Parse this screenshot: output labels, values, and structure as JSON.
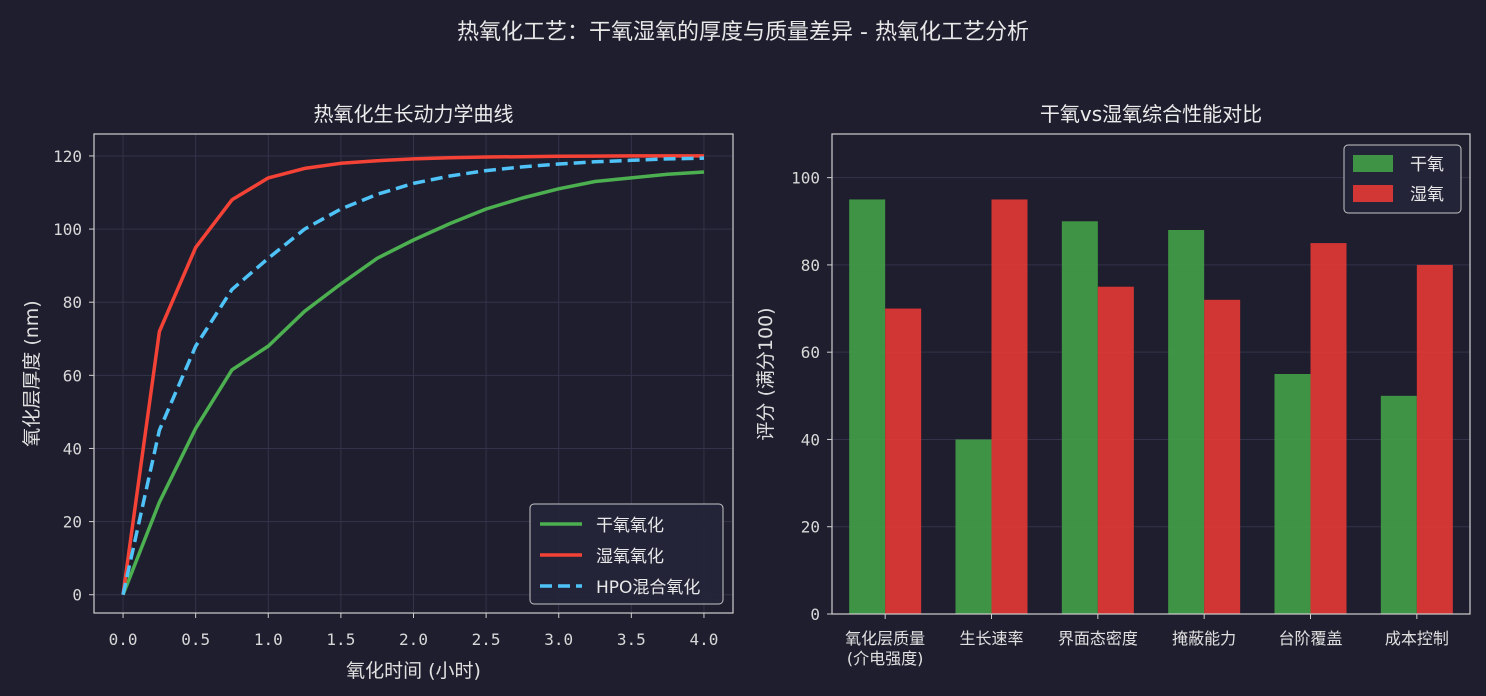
{
  "suptitle": "热氧化工艺：干氧湿氧的厚度与质量差异 - 热氧化工艺分析",
  "colors": {
    "background": "#1e1e2e",
    "dry": "#4caf50",
    "wet": "#f44336",
    "hpo": "#4fc3f7",
    "bar_dry": "#43a047",
    "bar_wet": "#e53935",
    "grid": "#33334a",
    "axis": "#cfcfcf"
  },
  "chart_data": [
    {
      "type": "line",
      "title": "热氧化生长动力学曲线",
      "xlabel": "氧化时间 (小时)",
      "ylabel": "氧化层厚度 (nm)",
      "xlim": [
        -0.2,
        4.2
      ],
      "ylim": [
        -5,
        126
      ],
      "xticks": [
        0.0,
        0.5,
        1.0,
        1.5,
        2.0,
        2.5,
        3.0,
        3.5,
        4.0
      ],
      "yticks": [
        0,
        20,
        40,
        60,
        80,
        100,
        120
      ],
      "grid": true,
      "legend_position": "lower-right",
      "x": [
        0.0,
        0.25,
        0.5,
        0.75,
        1.0,
        1.25,
        1.5,
        1.75,
        2.0,
        2.25,
        2.5,
        2.75,
        3.0,
        3.25,
        3.5,
        3.75,
        4.0
      ],
      "series": [
        {
          "name": "干氧氧化",
          "style": "solid",
          "color": "#4caf50",
          "values": [
            0,
            25.3,
            45.5,
            61.5,
            68.0,
            77.5,
            85.0,
            92.0,
            97.0,
            101.5,
            105.5,
            108.5,
            111.0,
            113.0,
            114.0,
            115.0,
            115.6
          ]
        },
        {
          "name": "湿氧氧化",
          "style": "solid",
          "color": "#f44336",
          "values": [
            0,
            72.0,
            95.0,
            108.0,
            114.0,
            116.6,
            118.0,
            118.7,
            119.2,
            119.5,
            119.7,
            119.8,
            119.9,
            119.95,
            120.0,
            120.0,
            120.0
          ]
        },
        {
          "name": "HPO混合氧化",
          "style": "dashed",
          "color": "#4fc3f7",
          "values": [
            0,
            45.0,
            68.0,
            83.5,
            92.0,
            100.0,
            105.5,
            109.5,
            112.5,
            114.5,
            116.0,
            117.0,
            117.8,
            118.4,
            118.8,
            119.2,
            119.4
          ]
        }
      ]
    },
    {
      "type": "bar",
      "title": "干氧vs湿氧综合性能对比",
      "ylabel": "评分 (满分100)",
      "ylim": [
        0,
        110
      ],
      "yticks": [
        0,
        20,
        40,
        60,
        80,
        100
      ],
      "grid": true,
      "legend_position": "top-right",
      "categories": [
        [
          "氧化层质量",
          "(介电强度)"
        ],
        [
          "生长速率"
        ],
        [
          "界面态密度"
        ],
        [
          "掩蔽能力"
        ],
        [
          "台阶覆盖"
        ],
        [
          "成本控制"
        ]
      ],
      "series": [
        {
          "name": "干氧",
          "color": "#43a047",
          "values": [
            95,
            40,
            90,
            88,
            55,
            50
          ]
        },
        {
          "name": "湿氧",
          "color": "#e53935",
          "values": [
            70,
            95,
            75,
            72,
            85,
            80
          ]
        }
      ]
    }
  ]
}
